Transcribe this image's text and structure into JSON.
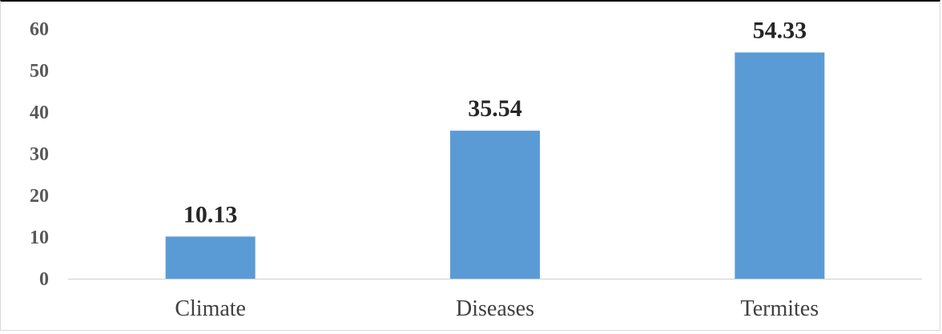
{
  "chart_data": {
    "type": "bar",
    "categories": [
      "Climate",
      "Diseases",
      "Termites"
    ],
    "values": [
      10.13,
      35.54,
      54.33
    ],
    "data_labels": [
      "10.13",
      "35.54",
      "54.33"
    ],
    "yticks": [
      "0",
      "10",
      "20",
      "30",
      "40",
      "50",
      "60"
    ],
    "ylim": [
      0,
      60
    ],
    "grid": false,
    "legend": "none",
    "title": "",
    "xlabel": "",
    "ylabel": "",
    "bar_color": "#5b9bd5",
    "axis_color": "#d9d9d9"
  }
}
